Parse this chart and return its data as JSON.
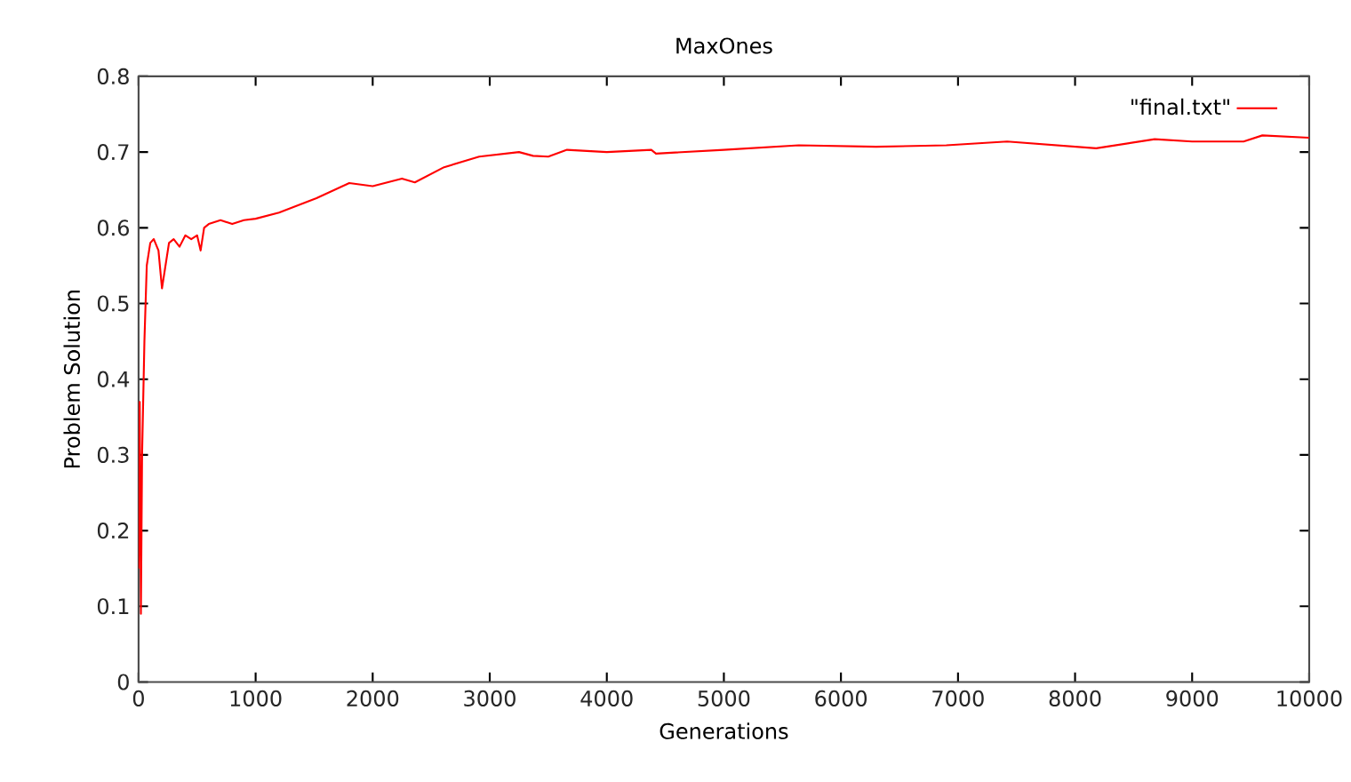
{
  "chart_data": {
    "type": "line",
    "title": "MaxOnes",
    "xlabel": "Generations",
    "ylabel": "Problem Solution",
    "xlim": [
      0,
      10000
    ],
    "ylim": [
      0,
      0.8
    ],
    "xticks": [
      0,
      1000,
      2000,
      3000,
      4000,
      5000,
      6000,
      7000,
      8000,
      9000,
      10000
    ],
    "yticks": [
      0,
      0.1,
      0.2,
      0.3,
      0.4,
      0.5,
      0.6,
      0.7,
      0.8
    ],
    "legend": "top right",
    "series": [
      {
        "name": "\"final.txt\"",
        "color": "#ff0000",
        "x": [
          0,
          10,
          20,
          30,
          50,
          70,
          100,
          130,
          170,
          200,
          230,
          260,
          300,
          350,
          400,
          450,
          500,
          530,
          560,
          600,
          700,
          800,
          900,
          1000,
          1200,
          1520,
          1800,
          2000,
          2250,
          2360,
          2610,
          2910,
          3250,
          3370,
          3500,
          3660,
          4000,
          4380,
          4420,
          5000,
          5640,
          6300,
          6900,
          7420,
          8180,
          8680,
          9000,
          9440,
          9600,
          10000
        ],
        "values": [
          0.15,
          0.37,
          0.09,
          0.3,
          0.45,
          0.55,
          0.58,
          0.585,
          0.57,
          0.52,
          0.55,
          0.58,
          0.585,
          0.575,
          0.59,
          0.585,
          0.59,
          0.57,
          0.6,
          0.605,
          0.61,
          0.605,
          0.61,
          0.612,
          0.62,
          0.639,
          0.659,
          0.655,
          0.665,
          0.66,
          0.68,
          0.694,
          0.7,
          0.695,
          0.694,
          0.703,
          0.7,
          0.703,
          0.698,
          0.703,
          0.709,
          0.707,
          0.709,
          0.714,
          0.705,
          0.717,
          0.714,
          0.714,
          0.722,
          0.719
        ]
      }
    ]
  }
}
